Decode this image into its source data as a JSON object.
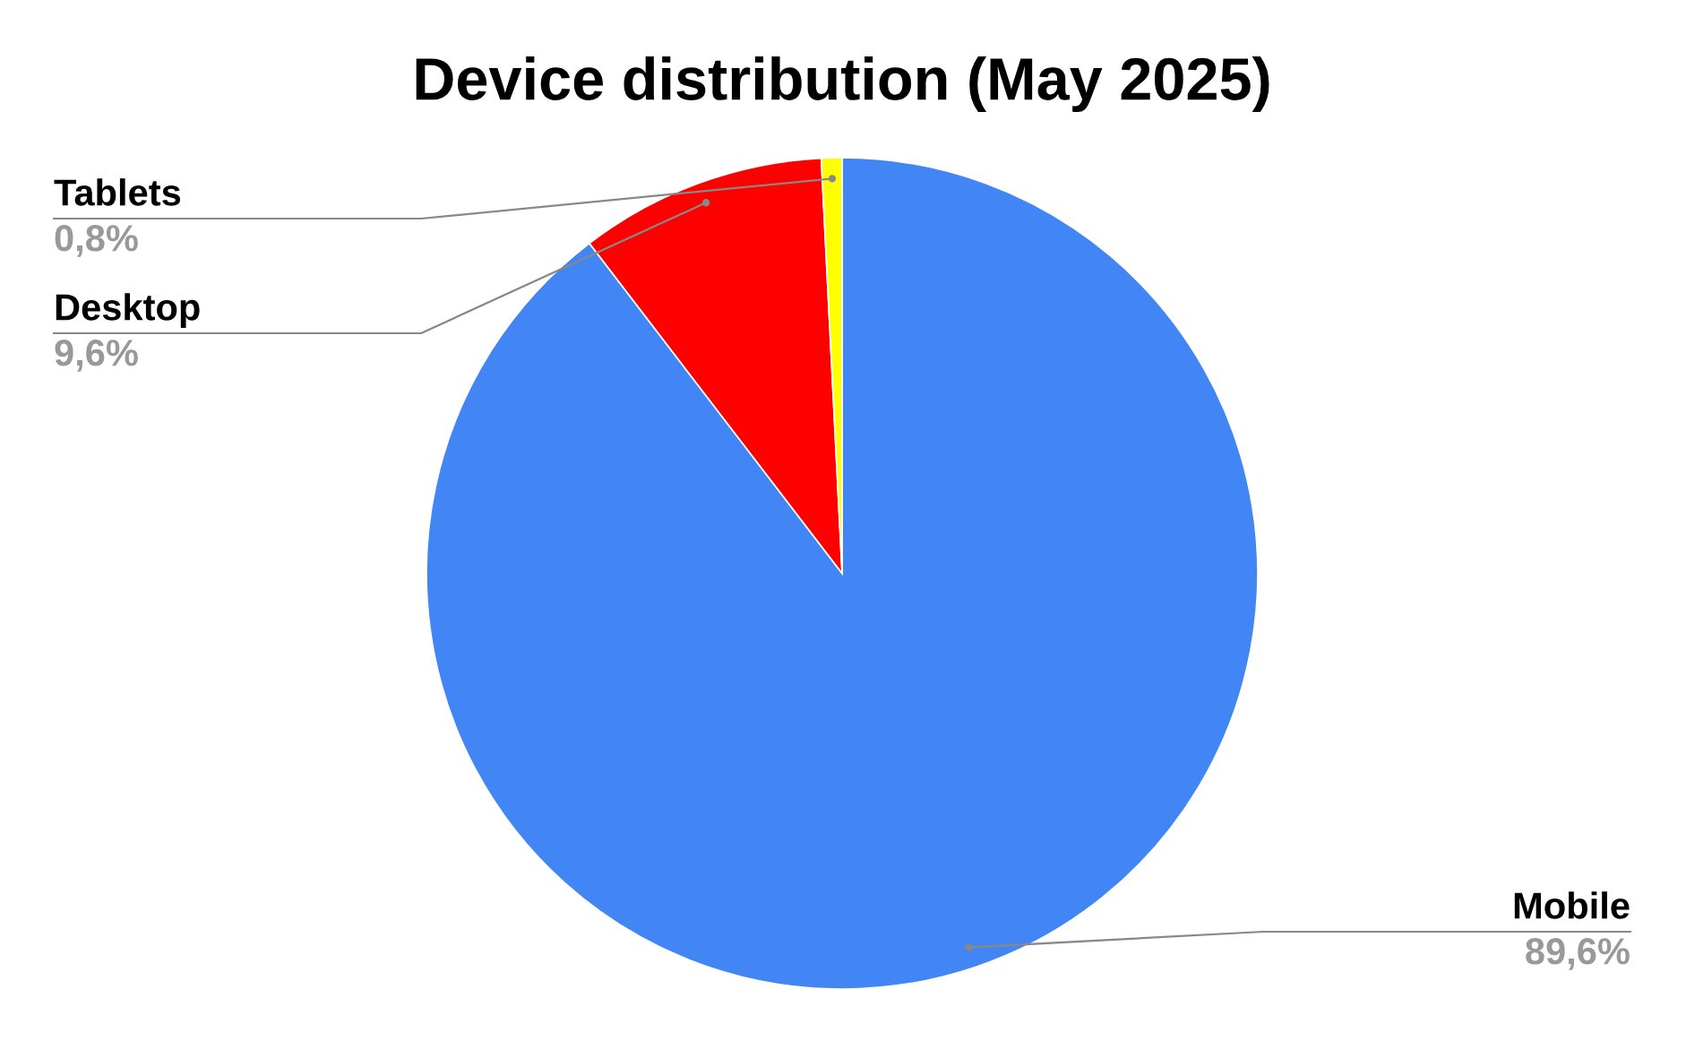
{
  "chart_data": {
    "type": "pie",
    "title": "Device distribution (May 2025)",
    "categories": [
      "Mobile",
      "Desktop",
      "Tablets"
    ],
    "values": [
      89.6,
      9.6,
      0.8
    ],
    "colors": [
      "#4285f4",
      "#ff0000",
      "#ffff00"
    ],
    "value_labels": [
      "89,6%",
      "9,6%",
      "0,8%"
    ]
  }
}
